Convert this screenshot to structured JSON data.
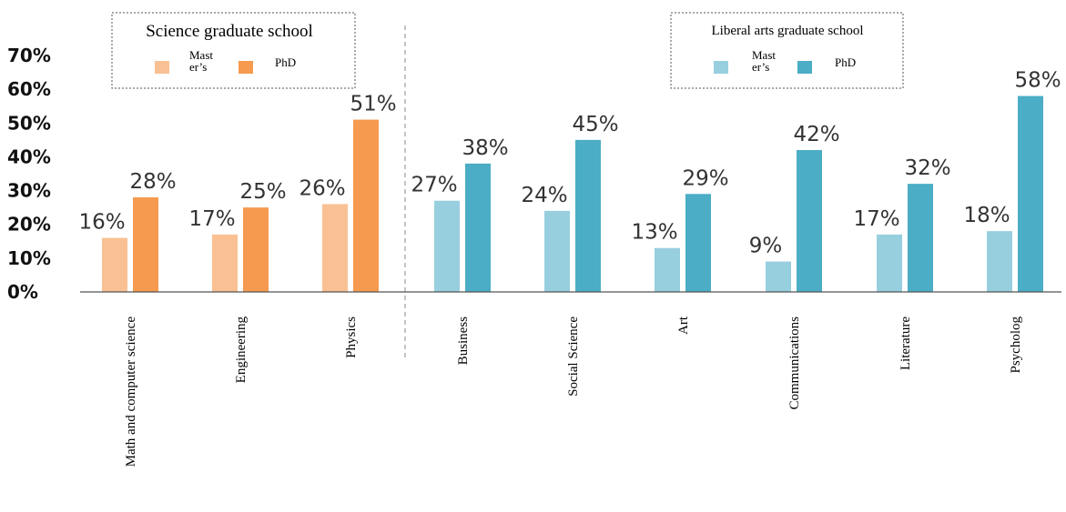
{
  "chart_data": {
    "type": "bar",
    "ylim": [
      0,
      70
    ],
    "y_ticks": [
      "0%",
      "10%",
      "20%",
      "30%",
      "40%",
      "50%",
      "60%",
      "70%"
    ],
    "groups": [
      {
        "title": "Science graduate school",
        "legend": [
          "Mast er’s",
          "PhD"
        ],
        "colors": [
          "#f9c193",
          "#f59a4e"
        ],
        "categories": [
          "Math and computer science",
          "Engineering",
          "Physics"
        ],
        "series": [
          {
            "name": "Master’s",
            "values": [
              16,
              17,
              26
            ],
            "labels": [
              "16%",
              "17%",
              "26%"
            ]
          },
          {
            "name": "PhD",
            "values": [
              28,
              25,
              51
            ],
            "labels": [
              "28%",
              "25%",
              "51%"
            ]
          }
        ]
      },
      {
        "title": "Liberal arts graduate school",
        "legend": [
          "Mast er’s",
          "PhD"
        ],
        "colors": [
          "#98cfdf",
          "#4badc6"
        ],
        "categories": [
          "Business",
          "Social Science",
          "Art",
          "Communications",
          "Literature",
          "Psycholog"
        ],
        "series": [
          {
            "name": "Master’s",
            "values": [
              27,
              24,
              13,
              9,
              17,
              18
            ],
            "labels": [
              "27%",
              "24%",
              "13%",
              "9%",
              "17%",
              "18%"
            ]
          },
          {
            "name": "PhD",
            "values": [
              38,
              45,
              29,
              42,
              32,
              58
            ],
            "labels": [
              "38%",
              "45%",
              "29%",
              "42%",
              "32%",
              "58%"
            ]
          }
        ]
      }
    ]
  }
}
